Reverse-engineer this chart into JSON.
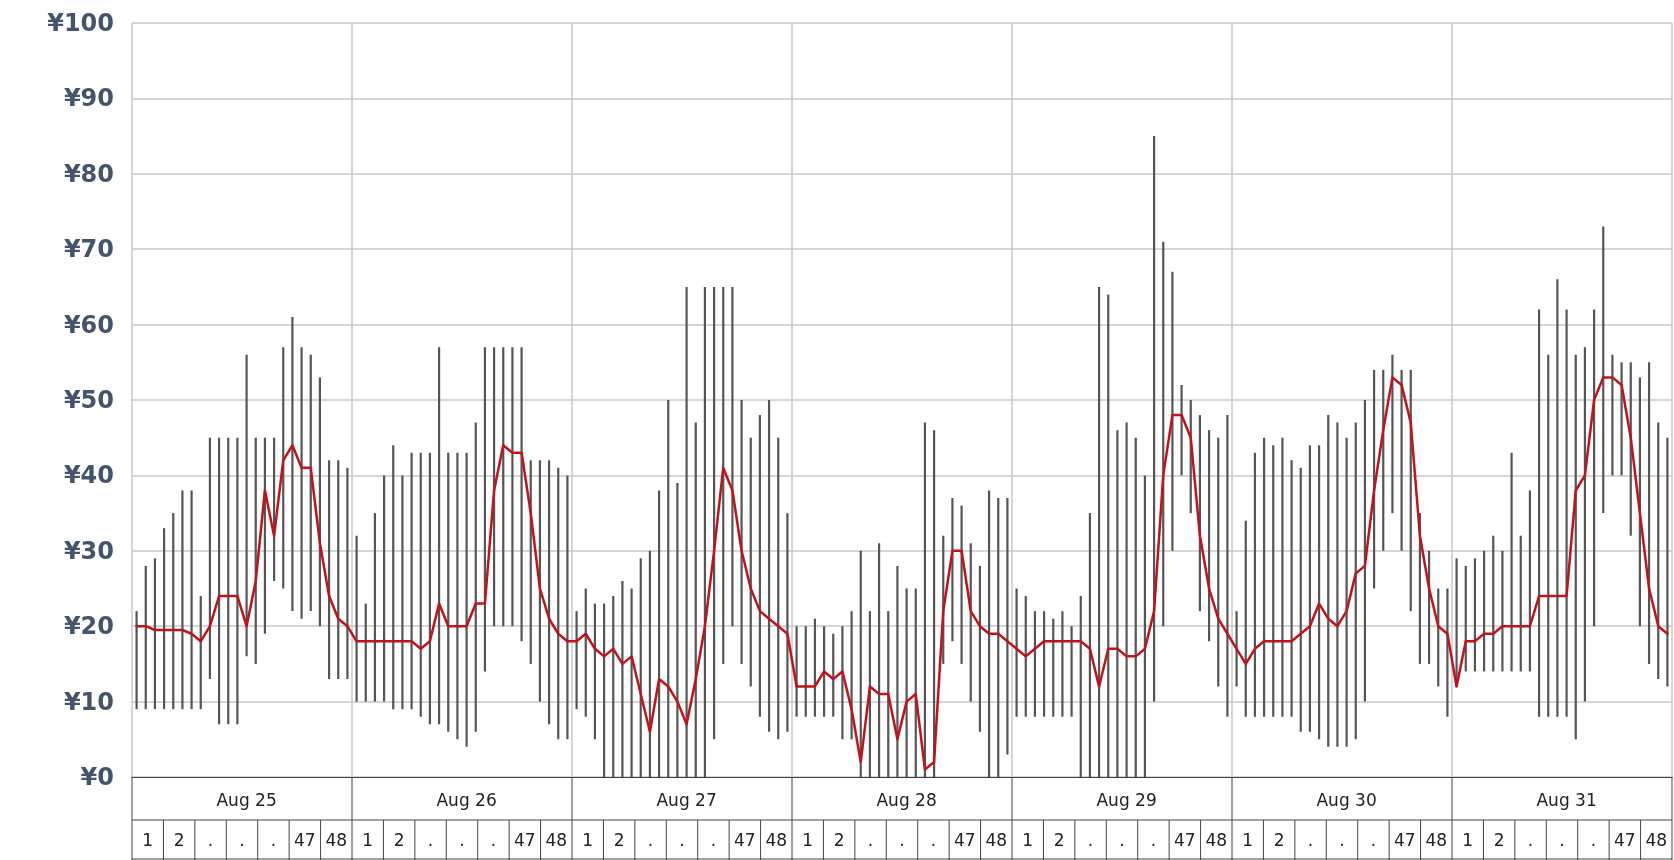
{
  "chart_data": {
    "type": "bar",
    "categories": [
      null,
      null,
      null,
      null,
      null,
      null,
      null,
      null,
      null,
      null,
      null,
      null,
      "Aug 25",
      null,
      null,
      null,
      null,
      null,
      null,
      null,
      null,
      null,
      null,
      null,
      null,
      null,
      null,
      null,
      null,
      null,
      null,
      null,
      null,
      null,
      null,
      null,
      "Aug 26",
      null,
      null,
      null,
      null,
      null,
      null,
      null,
      null,
      null,
      null,
      null,
      null,
      null,
      null,
      null,
      null,
      null,
      null,
      null,
      null,
      null,
      null,
      null,
      "Aug 27",
      null,
      null,
      null,
      null,
      null,
      null,
      null,
      null,
      null,
      null,
      null,
      null,
      null,
      null,
      null,
      null,
      null,
      null,
      null,
      null,
      null,
      null,
      null,
      "Aug 28",
      null,
      null,
      null,
      null,
      null,
      null,
      null,
      null,
      null,
      null,
      null,
      null,
      null,
      null,
      null,
      null,
      null,
      null,
      null,
      null,
      null,
      null,
      null,
      "Aug 29",
      null,
      null,
      null,
      null,
      null,
      null,
      null,
      null,
      null,
      null,
      null,
      null,
      null,
      null,
      null,
      null,
      null,
      null,
      null,
      null,
      null,
      null,
      null,
      "Aug 30",
      null,
      null,
      null,
      null,
      null,
      null,
      null,
      null,
      null,
      null,
      null,
      null,
      null,
      null,
      null,
      null,
      null,
      null,
      null,
      null,
      null,
      null,
      null,
      "Aug 31",
      null,
      null,
      null,
      null,
      null,
      null,
      null,
      null,
      null,
      null,
      null
    ],
    "series": [
      {
        "color": "#555555",
        "base": [
          9,
          9,
          9,
          9,
          9,
          9,
          9,
          9,
          13,
          7,
          7,
          7,
          16,
          15,
          19,
          26,
          25,
          22,
          21,
          22,
          20,
          13,
          13,
          13,
          10,
          10,
          10,
          10,
          9,
          9,
          9,
          8,
          7,
          7,
          6,
          5,
          4,
          6,
          14,
          20,
          20,
          20,
          18,
          15,
          10,
          7,
          5,
          5,
          9,
          8,
          5,
          0,
          0,
          0,
          0,
          0,
          0,
          0,
          0,
          0,
          0,
          0,
          0,
          5,
          15,
          20,
          15,
          12,
          8,
          6,
          5,
          6,
          8,
          8,
          8,
          8,
          8,
          5,
          5,
          0,
          0,
          0,
          0,
          0,
          0,
          0,
          0,
          0,
          15,
          18,
          15,
          10,
          6,
          0,
          0,
          3,
          8,
          8,
          8,
          8,
          8,
          8,
          8,
          0,
          0,
          0,
          0,
          0,
          0,
          0,
          0,
          10,
          20,
          30,
          40,
          35,
          22,
          18,
          12,
          8,
          12,
          8,
          8,
          8,
          8,
          8,
          8,
          6,
          6,
          5,
          4,
          4,
          4,
          5,
          10,
          25,
          30,
          35,
          30,
          22,
          15,
          15,
          12,
          8,
          12,
          14,
          14,
          14,
          14,
          14,
          14,
          14,
          14,
          8,
          8,
          8,
          8,
          5,
          10,
          20,
          35,
          40,
          40,
          32,
          20,
          15,
          13,
          12
        ],
        "values": [
          13,
          19,
          20,
          24,
          26,
          29,
          29,
          15,
          32,
          38,
          38,
          38,
          40,
          30,
          26,
          19,
          32,
          39,
          36,
          34,
          33,
          29,
          29,
          28,
          22,
          13,
          25,
          30,
          35,
          31,
          34,
          35,
          36,
          50,
          37,
          38,
          39,
          41,
          43,
          37,
          37,
          37,
          39,
          27,
          32,
          35,
          36,
          35,
          13,
          17,
          18,
          23,
          24,
          26,
          25,
          29,
          30,
          38,
          50,
          39,
          65,
          47,
          65,
          60,
          50,
          45,
          35,
          33,
          40,
          44,
          40,
          29,
          12,
          12,
          13,
          12,
          11,
          15,
          17,
          30,
          22,
          31,
          22,
          28,
          25,
          25,
          47,
          46,
          17,
          19,
          21,
          21,
          22,
          38,
          37,
          34,
          17,
          16,
          14,
          14,
          13,
          14,
          12,
          24,
          35,
          65,
          64,
          46,
          47,
          45,
          40,
          75,
          51,
          37,
          12,
          15,
          26,
          28,
          33,
          40,
          10,
          26,
          35,
          37,
          36,
          37,
          34,
          35,
          38,
          39,
          44,
          43,
          41,
          42,
          40,
          29,
          24,
          21,
          24,
          32,
          20,
          15,
          13,
          17,
          17,
          14,
          15,
          16,
          18,
          16,
          29,
          18,
          24,
          54,
          48,
          58,
          54,
          51,
          47,
          42,
          38,
          16,
          15,
          23,
          33,
          40,
          34,
          33
        ]
      },
      {
        "type": "line",
        "color": "#c0141c",
        "values": [
          20,
          20,
          19.5,
          19.5,
          19.5,
          19.5,
          19,
          18,
          20,
          24,
          24,
          24,
          20,
          26,
          38,
          32,
          42,
          44,
          41,
          41,
          31,
          24,
          21,
          20,
          18,
          18,
          18,
          18,
          18,
          18,
          18,
          17,
          18,
          23,
          20,
          20,
          20,
          23,
          23,
          38,
          44,
          43,
          43,
          35,
          25,
          21,
          19,
          18,
          18,
          19,
          17,
          16,
          17,
          15,
          16,
          11,
          6,
          13,
          12,
          10,
          7,
          13,
          20,
          30,
          41,
          38,
          30,
          25,
          22,
          21,
          20,
          19,
          12,
          12,
          12,
          14,
          13,
          14,
          9,
          2,
          12,
          11,
          11,
          5,
          10,
          11,
          1,
          2,
          22,
          30,
          30,
          22,
          20,
          19,
          19,
          18,
          17,
          16,
          17,
          18,
          18,
          18,
          18,
          18,
          17,
          12,
          17,
          17,
          16,
          16,
          17,
          22,
          40,
          48,
          48,
          45,
          32,
          25,
          21,
          19,
          17,
          15,
          17,
          18,
          18,
          18,
          18,
          19,
          20,
          23,
          21,
          20,
          22,
          27,
          28,
          38,
          46,
          53,
          52,
          47,
          32,
          25,
          20,
          19,
          12,
          18,
          18,
          19,
          19,
          20,
          20,
          20,
          20,
          24,
          24,
          24,
          24,
          38,
          40,
          50,
          53,
          53,
          52,
          45,
          35,
          25,
          20,
          19
        ]
      }
    ],
    "ylim": [
      0,
      100
    ],
    "yticks": [
      {
        "value": 0,
        "label": "¥0"
      },
      {
        "value": 10,
        "label": "¥10"
      },
      {
        "value": 20,
        "label": "¥20"
      },
      {
        "value": 30,
        "label": "¥30"
      },
      {
        "value": 40,
        "label": "¥40"
      },
      {
        "value": 50,
        "label": "¥50"
      },
      {
        "value": 60,
        "label": "¥60"
      },
      {
        "value": 70,
        "label": "¥70"
      },
      {
        "value": 80,
        "label": "¥80"
      },
      {
        "value": 90,
        "label": "¥90"
      },
      {
        "value": 100,
        "label": "¥100"
      }
    ],
    "annotations": [
      "1",
      "2",
      ".",
      ".",
      ".",
      "47",
      "48"
    ],
    "grid": true,
    "marker": "none",
    "line_style": "solid"
  }
}
